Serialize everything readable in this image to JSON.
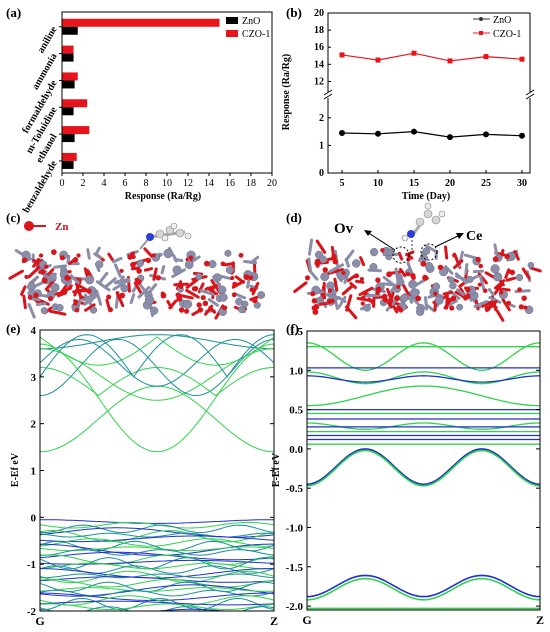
{
  "panels": {
    "a": "(a)",
    "b": "(b)",
    "c": "(c)",
    "d": "(d)",
    "e": "(e)",
    "f": "(f)"
  },
  "colors": {
    "zno": "#000000",
    "czo": "#e8141c",
    "oxygen": "#d9141a",
    "zinc": "#8a8ea8",
    "band_green": "#2fd34a",
    "band_blue": "#1f2fd0",
    "band_teal": "#1e8f9a"
  },
  "chart_data": [
    {
      "type": "bar",
      "orientation": "horizontal",
      "categories": [
        "aniline",
        "ammonia",
        "formaldehyde",
        "m-Toluidine",
        "ethanol",
        "benzaldehyde"
      ],
      "series": [
        {
          "name": "ZnO",
          "values": [
            1.5,
            1.1,
            1.2,
            1.1,
            1.2,
            1.1
          ]
        },
        {
          "name": "CZO-1",
          "values": [
            15.0,
            1.1,
            1.5,
            2.4,
            2.6,
            1.4
          ]
        }
      ],
      "xlabel": "Response (Ra/Rg)",
      "xlim": [
        0,
        20
      ],
      "xticks": [
        "0",
        "2",
        "4",
        "6",
        "8",
        "10",
        "12",
        "14",
        "16",
        "18",
        "20"
      ],
      "legend": "top-right"
    },
    {
      "type": "line",
      "x": [
        5,
        10,
        15,
        20,
        25,
        30
      ],
      "series": [
        {
          "name": "ZnO",
          "values": [
            1.45,
            1.42,
            1.5,
            1.3,
            1.4,
            1.35
          ]
        },
        {
          "name": "CZO-1",
          "values": [
            15.1,
            14.5,
            15.3,
            14.4,
            14.9,
            14.6
          ]
        }
      ],
      "xlabel": "Time (Day)",
      "ylabel": "Response (Ra/Rg)",
      "xticks": [
        "5",
        "10",
        "15",
        "20",
        "25",
        "30"
      ],
      "yticks_upper": [
        "12",
        "14",
        "16",
        "18",
        "20"
      ],
      "yticks_lower": [
        "0",
        "1",
        "2"
      ],
      "ylim_lower": [
        0,
        2.5
      ],
      "ylim_upper": [
        11,
        20
      ],
      "axis_break": true,
      "legend": "top-right"
    },
    {
      "type": "line",
      "title": "",
      "xlabel": "",
      "ylabel": "E-Ef eV",
      "xticks": [
        "G",
        "Z"
      ],
      "yticks": [
        "-2",
        "-1",
        "0",
        "1",
        "2",
        "3",
        "4"
      ],
      "ylim": [
        -2,
        4
      ],
      "series_colors": [
        "band_green",
        "band_blue",
        "band_teal"
      ]
    },
    {
      "type": "line",
      "xlabel": "",
      "ylabel": "E-Ef eV",
      "xticks": [
        "G",
        "Z"
      ],
      "yticks": [
        "-2.0",
        "-1.5",
        "-1.0",
        "-0.5",
        "0.0",
        "0.5",
        "1.0",
        "1.5"
      ],
      "ylim": [
        -2.05,
        1.5
      ],
      "series_colors": [
        "band_green",
        "band_blue"
      ]
    }
  ],
  "structure_c": {
    "legend_label": "Zn"
  },
  "structure_d": {
    "label_ov": "Ov",
    "label_ce": "Ce"
  }
}
